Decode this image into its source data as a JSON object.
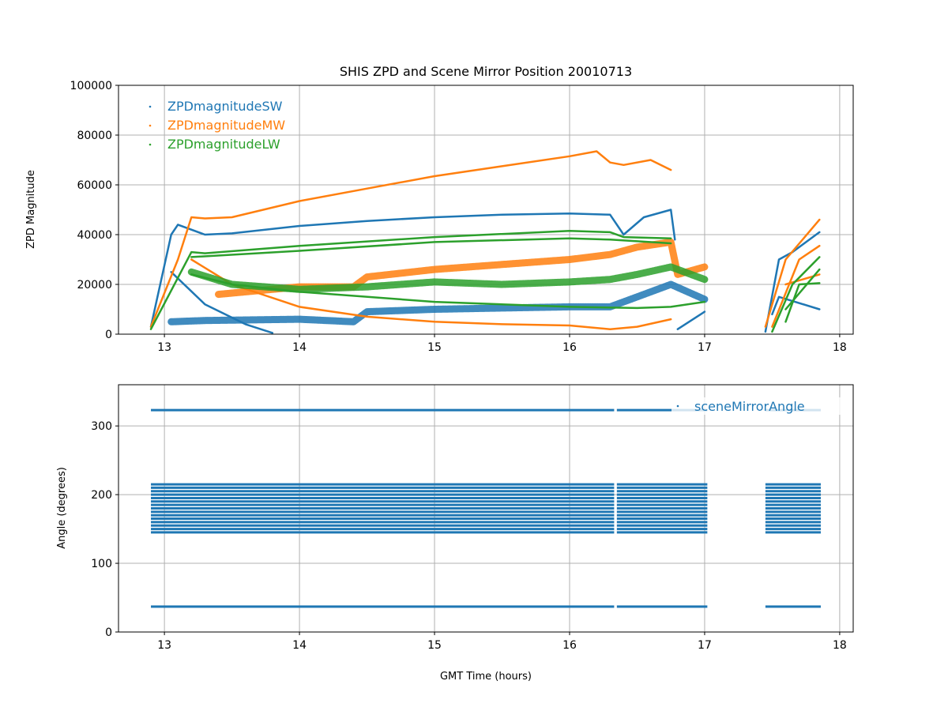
{
  "chart_data": [
    {
      "type": "scatter",
      "title": "SHIS ZPD and Scene Mirror Position 20010713",
      "xlabel": "",
      "ylabel": "ZPD Magnitude",
      "xlim": [
        12.66,
        18.1
      ],
      "ylim": [
        0,
        100000
      ],
      "xticks": [
        "13",
        "14",
        "15",
        "16",
        "17",
        "18"
      ],
      "yticks": [
        "0",
        "20000",
        "40000",
        "60000",
        "80000",
        "100000"
      ],
      "grid": true,
      "legend_position": "top-left",
      "series": [
        {
          "name": "ZPDmagnitudeSW",
          "color": "#1f77b4",
          "tracks": [
            {
              "noisy": false,
              "points": [
                [
                  12.9,
                  3000
                ],
                [
                  13.05,
                  40000
                ],
                [
                  13.1,
                  44000
                ],
                [
                  13.3,
                  40000
                ],
                [
                  13.5,
                  40500
                ],
                [
                  14,
                  43500
                ],
                [
                  14.5,
                  45500
                ],
                [
                  15,
                  47000
                ],
                [
                  15.5,
                  48000
                ],
                [
                  16,
                  48500
                ],
                [
                  16.3,
                  48000
                ],
                [
                  16.4,
                  40000
                ],
                [
                  16.55,
                  47000
                ],
                [
                  16.75,
                  50000
                ],
                [
                  16.78,
                  38000
                ]
              ]
            },
            {
              "noisy": true,
              "points": [
                [
                  13.05,
                  5000
                ],
                [
                  13.3,
                  5500
                ],
                [
                  14,
                  6000
                ],
                [
                  14.4,
                  5000
                ],
                [
                  14.5,
                  9000
                ],
                [
                  15,
                  10000
                ],
                [
                  15.5,
                  10500
                ],
                [
                  16,
                  11000
                ],
                [
                  16.3,
                  11000
                ],
                [
                  16.5,
                  15000
                ],
                [
                  16.75,
                  20000
                ],
                [
                  17,
                  14000
                ]
              ]
            },
            {
              "noisy": false,
              "points": [
                [
                  13.05,
                  25000
                ],
                [
                  13.3,
                  12000
                ],
                [
                  13.6,
                  4000
                ],
                [
                  13.8,
                  500
                ]
              ]
            },
            {
              "noisy": false,
              "points": [
                [
                  16.8,
                  2000
                ],
                [
                  17,
                  9000
                ]
              ]
            },
            {
              "noisy": false,
              "points": [
                [
                  17.45,
                  1000
                ],
                [
                  17.55,
                  30000
                ],
                [
                  17.65,
                  33000
                ],
                [
                  17.85,
                  41000
                ]
              ]
            },
            {
              "noisy": false,
              "points": [
                [
                  17.5,
                  8000
                ],
                [
                  17.55,
                  15000
                ],
                [
                  17.85,
                  10000
                ]
              ]
            }
          ]
        },
        {
          "name": "ZPDmagnitudeMW",
          "color": "#ff7f0e",
          "tracks": [
            {
              "noisy": false,
              "points": [
                [
                  12.9,
                  3000
                ],
                [
                  13.1,
                  30000
                ],
                [
                  13.2,
                  47000
                ],
                [
                  13.3,
                  46500
                ],
                [
                  13.5,
                  47000
                ],
                [
                  14,
                  53500
                ],
                [
                  14.5,
                  58500
                ],
                [
                  15,
                  63500
                ],
                [
                  15.5,
                  67500
                ],
                [
                  16,
                  71500
                ],
                [
                  16.2,
                  73500
                ],
                [
                  16.3,
                  69000
                ],
                [
                  16.4,
                  68000
                ],
                [
                  16.6,
                  70000
                ],
                [
                  16.75,
                  66000
                ]
              ]
            },
            {
              "noisy": true,
              "points": [
                [
                  13.4,
                  16000
                ],
                [
                  14,
                  19000
                ],
                [
                  14.4,
                  19000
                ],
                [
                  14.5,
                  23000
                ],
                [
                  15,
                  26000
                ],
                [
                  15.5,
                  28000
                ],
                [
                  16,
                  30000
                ],
                [
                  16.3,
                  32000
                ],
                [
                  16.5,
                  35000
                ],
                [
                  16.75,
                  37000
                ],
                [
                  16.8,
                  24000
                ],
                [
                  17,
                  27000
                ]
              ]
            },
            {
              "noisy": false,
              "points": [
                [
                  13.2,
                  30000
                ],
                [
                  13.5,
                  20000
                ],
                [
                  14,
                  11000
                ],
                [
                  14.5,
                  7000
                ],
                [
                  15,
                  5000
                ],
                [
                  15.5,
                  4000
                ],
                [
                  16,
                  3500
                ],
                [
                  16.3,
                  2000
                ],
                [
                  16.5,
                  3000
                ],
                [
                  16.75,
                  6000
                ]
              ]
            },
            {
              "noisy": false,
              "points": [
                [
                  17.45,
                  3000
                ],
                [
                  17.6,
                  30000
                ],
                [
                  17.85,
                  46000
                ]
              ]
            },
            {
              "noisy": false,
              "points": [
                [
                  17.5,
                  3000
                ],
                [
                  17.7,
                  30000
                ],
                [
                  17.85,
                  35500
                ]
              ]
            },
            {
              "noisy": false,
              "points": [
                [
                  17.6,
                  20000
                ],
                [
                  17.85,
                  24000
                ]
              ]
            }
          ]
        },
        {
          "name": "ZPDmagnitudeLW",
          "color": "#2ca02c",
          "tracks": [
            {
              "noisy": false,
              "points": [
                [
                  12.9,
                  2000
                ],
                [
                  13.2,
                  33000
                ],
                [
                  13.3,
                  32500
                ],
                [
                  14,
                  35500
                ],
                [
                  15,
                  39000
                ],
                [
                  16,
                  41500
                ],
                [
                  16.3,
                  41000
                ],
                [
                  16.4,
                  39000
                ],
                [
                  16.75,
                  38500
                ]
              ]
            },
            {
              "noisy": false,
              "points": [
                [
                  13.2,
                  31000
                ],
                [
                  14,
                  33500
                ],
                [
                  15,
                  37000
                ],
                [
                  16,
                  38500
                ],
                [
                  16.3,
                  38000
                ],
                [
                  16.75,
                  36500
                ]
              ]
            },
            {
              "noisy": true,
              "points": [
                [
                  13.2,
                  25000
                ],
                [
                  13.5,
                  20000
                ],
                [
                  14,
                  18000
                ],
                [
                  14.5,
                  19000
                ],
                [
                  15,
                  21000
                ],
                [
                  15.5,
                  20000
                ],
                [
                  16,
                  21000
                ],
                [
                  16.3,
                  22000
                ],
                [
                  16.5,
                  24000
                ],
                [
                  16.75,
                  27000
                ],
                [
                  17,
                  22000
                ]
              ]
            },
            {
              "noisy": false,
              "points": [
                [
                  13.2,
                  24000
                ],
                [
                  13.5,
                  20000
                ],
                [
                  14,
                  17000
                ],
                [
                  15,
                  13000
                ],
                [
                  16,
                  11000
                ],
                [
                  16.5,
                  10500
                ],
                [
                  16.75,
                  11000
                ],
                [
                  17,
                  13000
                ]
              ]
            },
            {
              "noisy": false,
              "points": [
                [
                  17.5,
                  1000
                ],
                [
                  17.65,
                  20000
                ],
                [
                  17.85,
                  31000
                ]
              ]
            },
            {
              "noisy": false,
              "points": [
                [
                  17.6,
                  10000
                ],
                [
                  17.85,
                  26000
                ]
              ]
            },
            {
              "noisy": false,
              "points": [
                [
                  17.6,
                  5000
                ],
                [
                  17.7,
                  20000
                ],
                [
                  17.85,
                  20500
                ]
              ]
            }
          ]
        }
      ]
    },
    {
      "type": "scatter",
      "title": "",
      "xlabel": "GMT Time (hours)",
      "ylabel": "Angle (degrees)",
      "xlim": [
        12.66,
        18.1
      ],
      "ylim": [
        0,
        360
      ],
      "xticks": [
        "13",
        "14",
        "15",
        "16",
        "17",
        "18"
      ],
      "yticks": [
        "0",
        "100",
        "200",
        "300"
      ],
      "grid": true,
      "legend_position": "top-right",
      "series": [
        {
          "name": "sceneMirrorAngle",
          "color": "#1f77b4",
          "angles": [
            37,
            145,
            150,
            155,
            160,
            165,
            170,
            175,
            180,
            185,
            190,
            195,
            200,
            205,
            210,
            215,
            323
          ],
          "segments": [
            [
              12.9,
              16.33
            ],
            [
              16.35,
              17.02
            ],
            [
              17.45,
              17.86
            ]
          ]
        }
      ]
    }
  ]
}
